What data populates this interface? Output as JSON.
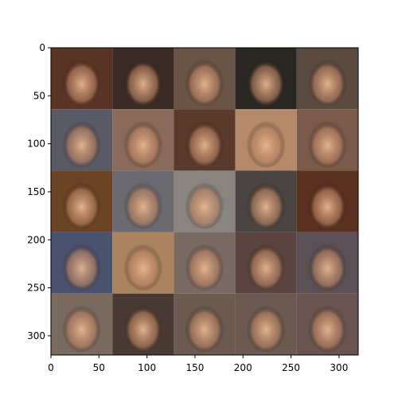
{
  "figure": {
    "grid_rows": 5,
    "grid_cols": 5,
    "extent": [
      0,
      320
    ],
    "xticks": [
      0,
      50,
      100,
      150,
      200,
      250,
      300
    ],
    "yticks": [
      0,
      50,
      100,
      150,
      200,
      250,
      300
    ],
    "tile_colors": [
      [
        "#5a3424",
        "#3a2a24",
        "#6a5446",
        "#2a2622",
        "#5a4a40"
      ],
      [
        "#5a5a66",
        "#8a6a5a",
        "#5a3a2a",
        "#b48a6a",
        "#7a5a4a"
      ],
      [
        "#6a4424",
        "#6a6a70",
        "#8a8480",
        "#4a4442",
        "#5a3020"
      ],
      [
        "#4a5270",
        "#aa8460",
        "#7a6a64",
        "#5a4440",
        "#5a5056"
      ],
      [
        "#7a6a60",
        "#4a3a34",
        "#6a5a50",
        "#6a5a52",
        "#6a5450"
      ]
    ]
  }
}
